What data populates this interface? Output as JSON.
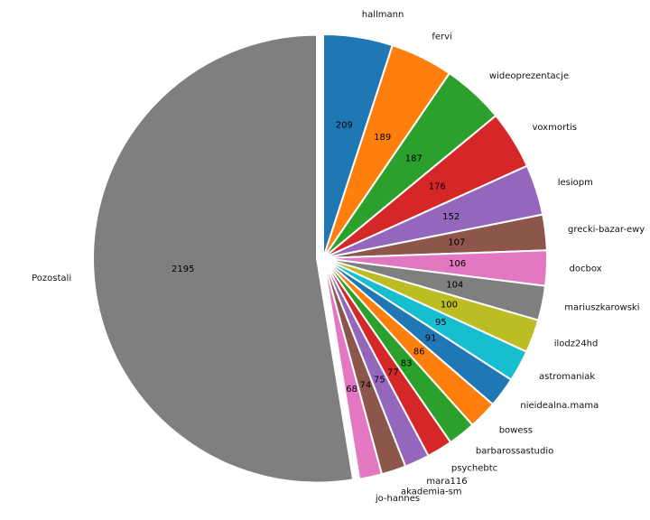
{
  "chart_data": {
    "type": "pie",
    "start_angle_deg": 90,
    "direction": "clockwise",
    "slices": [
      {
        "label": "hallmann",
        "value": 209,
        "color": "#1f77b4"
      },
      {
        "label": "fervi",
        "value": 189,
        "color": "#ff7f0e"
      },
      {
        "label": "wideoprezentacje",
        "value": 187,
        "color": "#2ca02c"
      },
      {
        "label": "voxmortis",
        "value": 176,
        "color": "#d62728"
      },
      {
        "label": "lesiopm",
        "value": 152,
        "color": "#9467bd"
      },
      {
        "label": "grecki-bazar-ewy",
        "value": 107,
        "color": "#8c564b"
      },
      {
        "label": "docbox",
        "value": 106,
        "color": "#e377c2"
      },
      {
        "label": "mariuszkarowski",
        "value": 104,
        "color": "#7f7f7f"
      },
      {
        "label": "ilodz24hd",
        "value": 100,
        "color": "#bcbd22"
      },
      {
        "label": "astromaniak",
        "value": 95,
        "color": "#17becf"
      },
      {
        "label": "nieidealna.mama",
        "value": 91,
        "color": "#1f77b4"
      },
      {
        "label": "bowess",
        "value": 86,
        "color": "#ff7f0e"
      },
      {
        "label": "barbarossastudio",
        "value": 83,
        "color": "#2ca02c"
      },
      {
        "label": "psychebtc",
        "value": 77,
        "color": "#d62728"
      },
      {
        "label": "mara116",
        "value": 75,
        "color": "#9467bd"
      },
      {
        "label": "akademia-sm",
        "value": 74,
        "color": "#8c564b"
      },
      {
        "label": "jo-hannes",
        "value": 68,
        "color": "#e377c2"
      },
      {
        "label": "Pozostali",
        "value": 2195,
        "color": "#7f7f7f",
        "exploded": true
      }
    ]
  }
}
